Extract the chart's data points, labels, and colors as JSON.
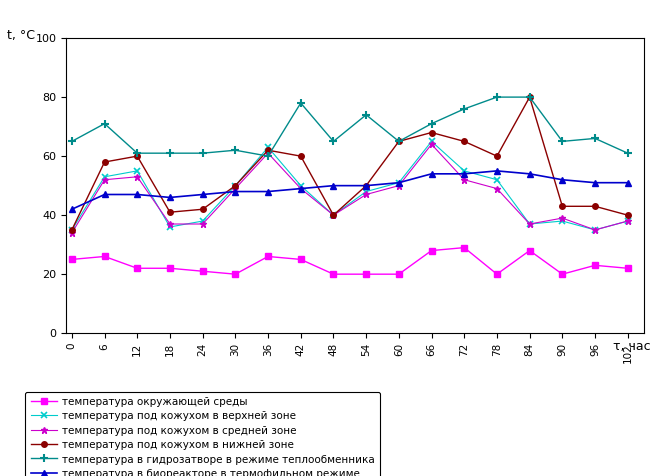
{
  "x": [
    0,
    6,
    12,
    18,
    24,
    30,
    36,
    42,
    48,
    54,
    60,
    66,
    72,
    78,
    84,
    90,
    96,
    102
  ],
  "temp_env": [
    25,
    26,
    22,
    22,
    21,
    20,
    26,
    25,
    20,
    20,
    20,
    28,
    29,
    20,
    28,
    20,
    23,
    22
  ],
  "temp_upper": [
    35,
    53,
    55,
    36,
    38,
    50,
    63,
    50,
    40,
    48,
    51,
    65,
    55,
    52,
    37,
    38,
    35,
    38
  ],
  "temp_middle": [
    34,
    52,
    53,
    37,
    37,
    49,
    61,
    49,
    40,
    47,
    50,
    64,
    52,
    49,
    37,
    39,
    35,
    38
  ],
  "temp_lower": [
    35,
    58,
    60,
    41,
    42,
    50,
    62,
    60,
    40,
    50,
    65,
    68,
    65,
    60,
    80,
    43,
    43,
    40
  ],
  "temp_hydro": [
    65,
    71,
    61,
    61,
    61,
    62,
    60,
    78,
    65,
    74,
    65,
    71,
    76,
    80,
    80,
    65,
    66,
    61
  ],
  "temp_bio": [
    42,
    47,
    47,
    46,
    47,
    48,
    48,
    49,
    50,
    50,
    51,
    54,
    54,
    55,
    54,
    52,
    51,
    51
  ],
  "ylabel": "t, °C",
  "xlabel": "τ, час",
  "ylim": [
    0,
    100
  ],
  "yticks": [
    0,
    20,
    40,
    60,
    80,
    100
  ],
  "color_env": "#FF00FF",
  "color_upper": "#00CCCC",
  "color_middle": "#CC00CC",
  "color_lower": "#8B0000",
  "color_hydro": "#008B8B",
  "color_bio": "#0000CC",
  "label_env": "температура окружающей среды",
  "label_upper": "температура под кожухом в верхней зоне",
  "label_middle": "температура под кожухом в средней зоне",
  "label_lower": "температура под кожухом в нижней зоне",
  "label_hydro": "температура в гидрозатворе в режиме теплообменника",
  "label_bio": "температура в биореакторе в термофильном режиме"
}
